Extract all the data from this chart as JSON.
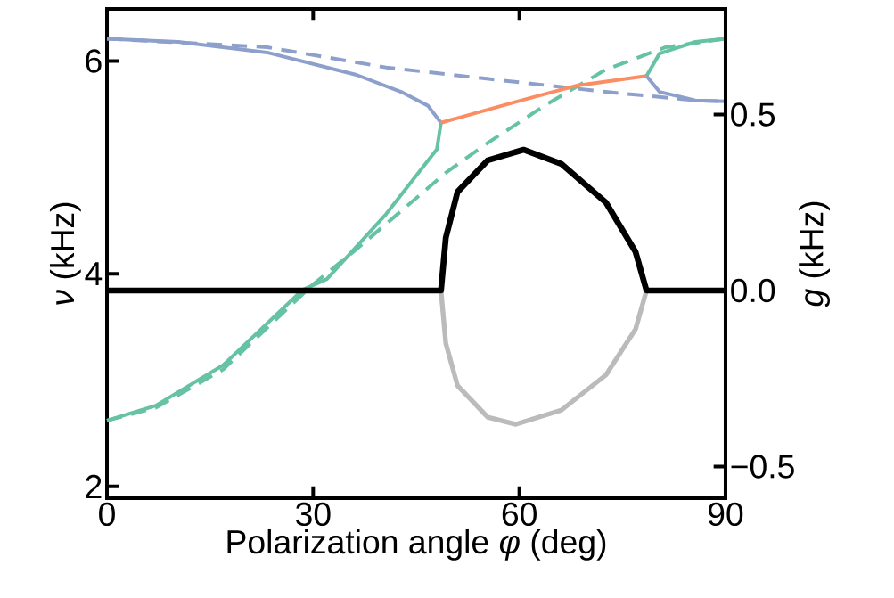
{
  "chart_data": {
    "type": "line",
    "xlabel": "Polarization angle *φ* (deg)",
    "ylabel": "*ν* (kHz)",
    "y2label": "*g* (kHz)",
    "xlim": [
      0,
      90
    ],
    "xticks": [
      0,
      30,
      60,
      90
    ],
    "ylim": [
      1.89,
      6.49
    ],
    "yticks": [
      2,
      4,
      6
    ],
    "y2lim": [
      -0.59,
      0.8
    ],
    "y2ticks": [
      {
        "value": -0.5,
        "label": "−0.5"
      },
      {
        "value": 0,
        "label": "0.0"
      },
      {
        "value": 0.5,
        "label": "0.5"
      }
    ],
    "series": [
      {
        "color": "#8da0cb",
        "line_style": "dashed",
        "x": [
          0,
          23.3,
          40.6,
          55.8,
          72.6,
          85.6,
          90
        ],
        "values": [
          6.21,
          6.13,
          5.94,
          5.83,
          5.71,
          5.63,
          5.62
        ]
      },
      {
        "color": "#66c2a5",
        "line_style": "dashed",
        "x": [
          0,
          7.1,
          16.9,
          29.8,
          36.3,
          49.3,
          55.4,
          63.9,
          72.6,
          81.3,
          90
        ],
        "values": [
          2.62,
          2.74,
          3.1,
          3.89,
          4.23,
          4.95,
          5.23,
          5.59,
          5.92,
          6.13,
          6.21
        ]
      },
      {
        "color": "#8da0cb",
        "line_style": "solid",
        "x": [
          0,
          10.4,
          23.3,
          36.3,
          42.8,
          46.7,
          48.6
        ],
        "values": [
          6.21,
          6.18,
          6.08,
          5.87,
          5.71,
          5.58,
          5.42
        ]
      },
      {
        "color": "#66c2a5",
        "line_style": "solid",
        "x": [
          0,
          7.1,
          16.9,
          28.5,
          32.0,
          40.6,
          48.0,
          48.6
        ],
        "values": [
          2.62,
          2.76,
          3.14,
          3.85,
          3.95,
          4.56,
          5.17,
          5.42
        ]
      },
      {
        "color": "#fc8d62",
        "line_style": "solid",
        "x": [
          48.6,
          59.7,
          68.4,
          78.5
        ],
        "values": [
          5.42,
          5.62,
          5.77,
          5.86
        ]
      },
      {
        "color": "#66c2a5",
        "line_style": "solid",
        "x": [
          78.5,
          80.4,
          85.6,
          90
        ],
        "values": [
          5.86,
          6.07,
          6.18,
          6.21
        ]
      },
      {
        "color": "#8da0cb",
        "line_style": "solid",
        "x": [
          78.5,
          80.4,
          85.6,
          90
        ],
        "values": [
          5.86,
          5.71,
          5.63,
          5.62
        ]
      },
      {
        "color": "#bbbbbb",
        "line_style": "solid",
        "axis": "y2",
        "x": [
          48.6,
          49.3,
          51.0,
          55.4,
          59.5,
          66.1,
          72.6,
          76.9,
          78.5
        ],
        "values": [
          0,
          -0.15,
          -0.27,
          -0.36,
          -0.38,
          -0.34,
          -0.24,
          -0.11,
          0
        ]
      },
      {
        "color": "#000000",
        "line_style": "solid",
        "axis": "y2",
        "x": [
          0,
          48.6,
          49.3,
          51.0,
          55.4,
          60.6,
          66.1,
          72.6,
          76.9,
          78.5,
          90
        ],
        "values": [
          0,
          0,
          0.15,
          0.28,
          0.37,
          0.4,
          0.36,
          0.25,
          0.11,
          0,
          0
        ]
      }
    ]
  }
}
